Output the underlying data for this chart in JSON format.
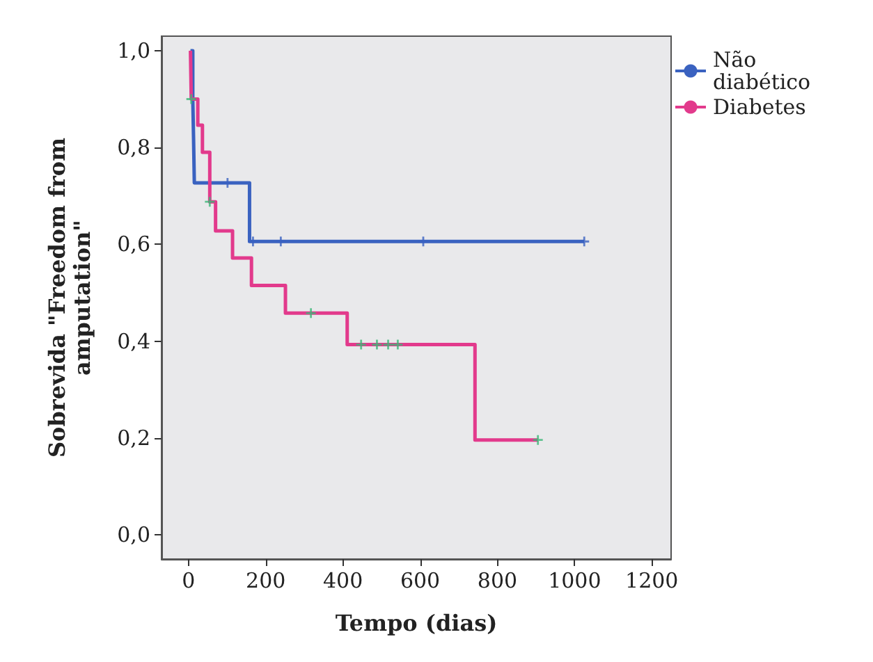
{
  "chart_data": {
    "type": "step",
    "xlabel": "Tempo (dias)",
    "ylabel": "Sobrevida \"Freedom from amputation\"",
    "xlim": [
      -70,
      1250
    ],
    "ylim": [
      -0.05,
      1.03
    ],
    "xticks": [
      0,
      200,
      400,
      600,
      800,
      1000,
      1200
    ],
    "yticks": [
      {
        "value": 0,
        "label": "0,0"
      },
      {
        "value": 0.2,
        "label": "0,2"
      },
      {
        "value": 0.4,
        "label": "0,4"
      },
      {
        "value": 0.6,
        "label": "0,6"
      },
      {
        "value": 0.8,
        "label": "0,8"
      },
      {
        "value": 1,
        "label": "1,0"
      }
    ],
    "legend": "top right",
    "grid": false,
    "line_style": "solid",
    "series": [
      {
        "name": "Não diabético",
        "color": "#3a62c0",
        "x": [
          5,
          11,
          13,
          15,
          158,
          1025
        ],
        "values": [
          1,
          0.9,
          0.82,
          0.727,
          0.606,
          0.606
        ]
      },
      {
        "name": "Diabetes",
        "color": "#e23a8c",
        "x": [
          5,
          7,
          24,
          36,
          55,
          70,
          114,
          163,
          251,
          411,
          742,
          905
        ],
        "values": [
          1,
          0.9,
          0.846,
          0.79,
          0.688,
          0.628,
          0.572,
          0.515,
          0.458,
          0.393,
          0.196,
          0.196
        ]
      },
      {
        "type": "scatter",
        "marker": "cross",
        "color": "#3a62c0",
        "x": [
          101,
          167,
          239,
          608,
          1025
        ],
        "values": [
          0.727,
          0.606,
          0.606,
          0.606,
          0.606
        ]
      },
      {
        "type": "scatter",
        "marker": "cross",
        "color": "#3cb878",
        "x": [
          7,
          55,
          317,
          447,
          488,
          517,
          542,
          905
        ],
        "values": [
          0.9,
          0.688,
          0.458,
          0.393,
          0.393,
          0.393,
          0.393,
          0.196
        ]
      }
    ]
  }
}
